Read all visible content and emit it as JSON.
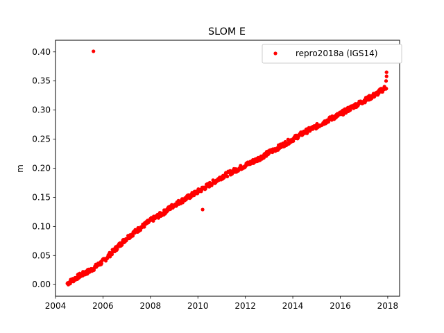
{
  "chart_data": {
    "type": "scatter",
    "title": "SLOM E",
    "xlabel": "",
    "ylabel": "m",
    "xlim": [
      2004.0,
      2018.5
    ],
    "ylim": [
      -0.02,
      0.42
    ],
    "x_ticks": [
      2004,
      2006,
      2008,
      2010,
      2012,
      2014,
      2016,
      2018
    ],
    "x_tick_labels": [
      "2004",
      "2006",
      "2008",
      "2010",
      "2012",
      "2014",
      "2016",
      "2018"
    ],
    "y_ticks": [
      0.0,
      0.05,
      0.1,
      0.15,
      0.2,
      0.25,
      0.3,
      0.35,
      0.4
    ],
    "y_tick_labels": [
      "0.00",
      "0.05",
      "0.10",
      "0.15",
      "0.20",
      "0.25",
      "0.30",
      "0.35",
      "0.40"
    ],
    "grid": false,
    "legend_position": "top-right",
    "series": [
      {
        "name": "repro2018a (IGS14)",
        "color": "#ff0000",
        "marker": "circle",
        "trend": {
          "x": [
            2004.5,
            2005.0,
            2005.5,
            2006.0,
            2006.5,
            2007.0,
            2007.5,
            2008.0,
            2008.5,
            2009.0,
            2009.5,
            2010.0,
            2010.5,
            2011.0,
            2011.5,
            2012.0,
            2012.5,
            2013.0,
            2013.5,
            2014.0,
            2014.5,
            2015.0,
            2015.5,
            2016.0,
            2016.5,
            2017.0,
            2017.5,
            2017.95
          ],
          "y": [
            0.002,
            0.015,
            0.025,
            0.04,
            0.06,
            0.08,
            0.095,
            0.11,
            0.122,
            0.137,
            0.148,
            0.16,
            0.172,
            0.185,
            0.195,
            0.205,
            0.215,
            0.227,
            0.238,
            0.25,
            0.262,
            0.272,
            0.283,
            0.293,
            0.305,
            0.316,
            0.327,
            0.34
          ]
        },
        "spread": 0.004,
        "outliers": [
          {
            "x": 2005.6,
            "y": 0.401
          },
          {
            "x": 2010.2,
            "y": 0.129
          },
          {
            "x": 2017.95,
            "y": 0.365
          },
          {
            "x": 2017.95,
            "y": 0.358
          },
          {
            "x": 2017.93,
            "y": 0.35
          }
        ]
      }
    ]
  }
}
